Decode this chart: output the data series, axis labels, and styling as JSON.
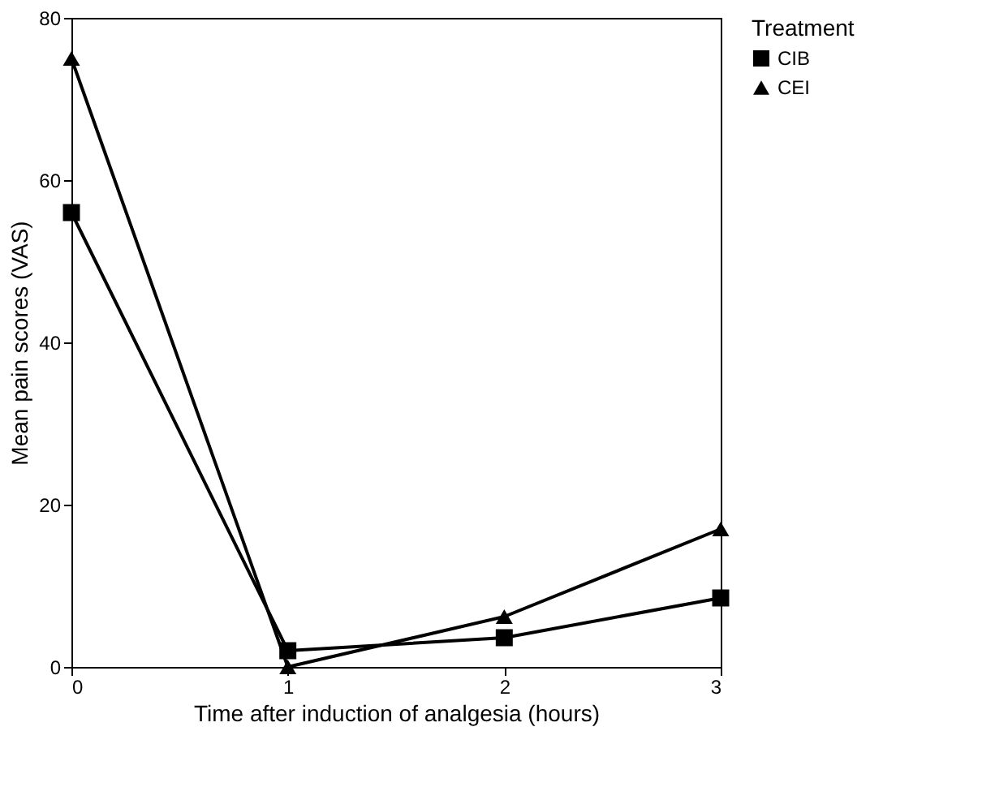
{
  "chart_data": {
    "type": "line",
    "xlabel": "Time after induction of analgesia (hours)",
    "ylabel": "Mean pain scores (VAS)",
    "legend_title": "Treatment",
    "x": [
      0,
      1,
      2,
      3
    ],
    "series": [
      {
        "name": "CIB",
        "color": "#000000",
        "marker": "square",
        "values": [
          56,
          2,
          3.6,
          8.5
        ]
      },
      {
        "name": "CEI",
        "color": "#000000",
        "marker": "triangle",
        "values": [
          75,
          0,
          6.2,
          17
        ]
      }
    ],
    "xlim": [
      0,
      3
    ],
    "xticks": [
      0,
      1,
      2,
      3
    ],
    "ylim": [
      0,
      80
    ],
    "yticks": [
      0,
      20,
      40,
      60,
      80
    ],
    "grid": false,
    "legend": "right",
    "line_style": "solid"
  }
}
